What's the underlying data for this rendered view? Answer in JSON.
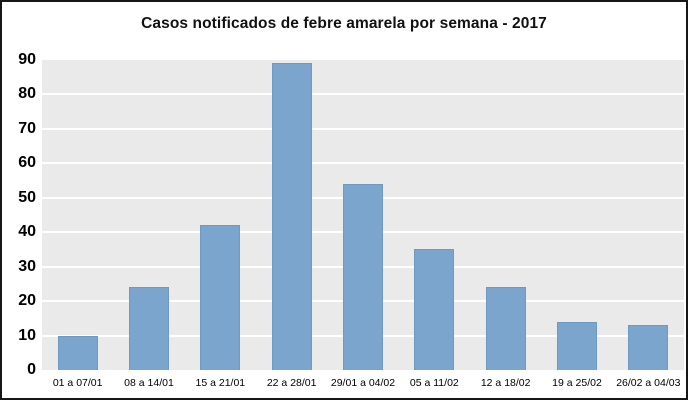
{
  "chart_data": {
    "type": "bar",
    "title": "Casos notificados de febre amarela por semana - 2017",
    "categories": [
      "01 a 07/01",
      "08 a 14/01",
      "15 a 21/01",
      "22 a 28/01",
      "29/01 a 04/02",
      "05 a 11/02",
      "12 a 18/02",
      "19 a 25/02",
      "26/02 a 04/03"
    ],
    "values": [
      10,
      24,
      42,
      89,
      54,
      35,
      24,
      14,
      13
    ],
    "xlabel": "",
    "ylabel": "",
    "ylim": [
      0,
      90
    ],
    "yticks": [
      0,
      10,
      20,
      30,
      40,
      50,
      60,
      70,
      80,
      90
    ],
    "grid": "horizontal white lines on gray plot background",
    "legend": "none",
    "colors": {
      "bar_fill": "#7CA5CE",
      "bar_border": "#6D9AC2",
      "plot_background": "#EAEAEA",
      "gridline": "#FFFFFF",
      "chart_border": "#161616",
      "text": "#000000"
    }
  }
}
